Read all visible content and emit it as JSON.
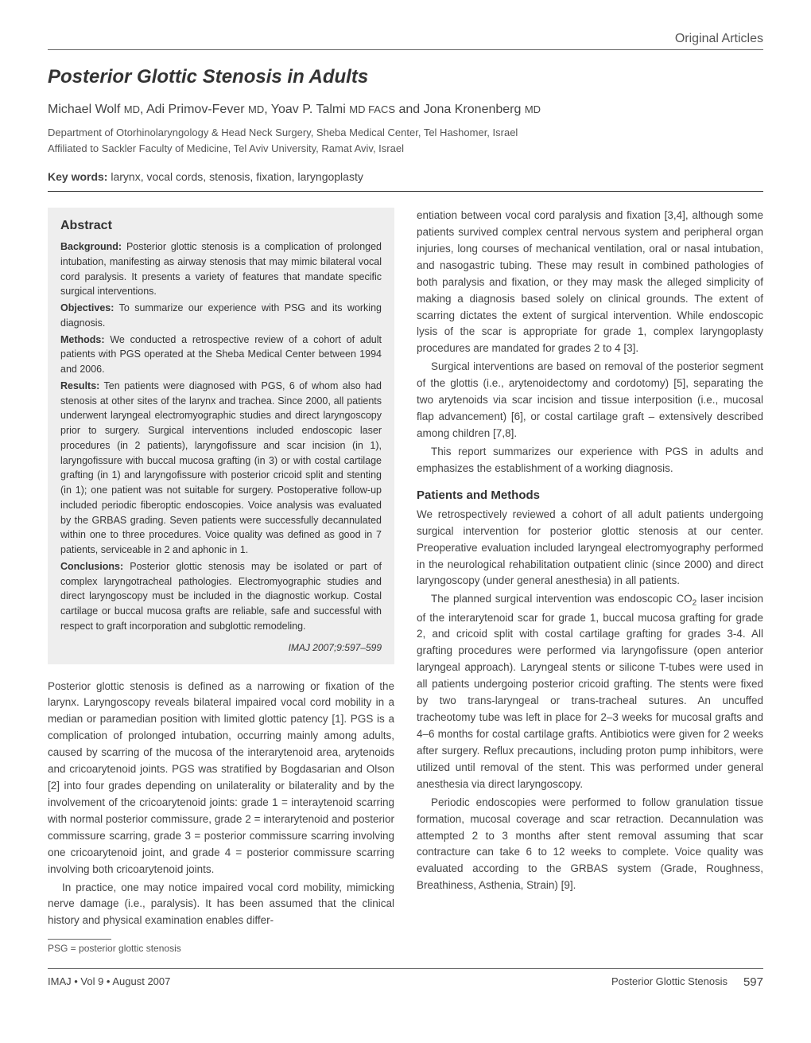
{
  "header": {
    "category": "Original Articles"
  },
  "title": "Posterior Glottic Stenosis in Adults",
  "authors_html": "Michael Wolf <span class=\"degree\">MD</span>, Adi Primov-Fever <span class=\"degree\">MD</span>, Yoav P. Talmi <span class=\"degree\">MD FACS</span> and Jona Kronenberg <span class=\"degree\">MD</span>",
  "affiliation_line1": "Department of Otorhinolaryngology & Head Neck Surgery, Sheba Medical Center, Tel Hashomer, Israel",
  "affiliation_line2": "Affiliated to Sackler Faculty of Medicine, Tel Aviv University, Ramat Aviv, Israel",
  "keywords": {
    "label": "Key words:",
    "text": "larynx, vocal cords, stenosis, fixation, laryngoplasty"
  },
  "abstract": {
    "title": "Abstract",
    "background": {
      "label": "Background:",
      "text": "Posterior glottic stenosis is a complication of prolonged intubation, manifesting as airway stenosis that may mimic bilateral vocal cord paralysis. It presents a variety of features that mandate specific surgical interventions."
    },
    "objectives": {
      "label": "Objectives:",
      "text": "To summarize our experience with PSG and its working diagnosis."
    },
    "methods": {
      "label": "Methods:",
      "text": "We conducted a retrospective review of a cohort of adult patients with PGS operated at the Sheba Medical Center between 1994 and 2006."
    },
    "results": {
      "label": "Results:",
      "text": "Ten patients were diagnosed with PGS, 6 of whom also had stenosis at other sites of the larynx and trachea. Since 2000, all patients underwent laryngeal electromyographic studies and direct laryngoscopy prior to surgery. Surgical interventions included endoscopic laser procedures (in 2 patients), laryngofissure and scar incision (in 1), laryngofissure with buccal mucosa grafting (in 3) or with costal cartilage grafting (in 1) and laryngofissure with posterior cricoid split and stenting (in 1); one patient was not suitable for surgery. Postoperative follow-up included periodic fiberoptic endoscopies. Voice analysis was evaluated by the GRBAS grading. Seven patients were successfully decannulated within one to three procedures. Voice quality was defined as good in 7 patients, serviceable in 2 and aphonic in 1."
    },
    "conclusions": {
      "label": "Conclusions:",
      "text": "Posterior glottic stenosis may be isolated or part of complex laryngotracheal pathologies. Electromyographic studies and direct laryngoscopy must be included in the diagnostic workup. Costal cartilage or buccal mucosa grafts are reliable, safe and successful with respect to graft incorporation and subglottic remodeling."
    },
    "citation": "IMAJ 2007;9:597–599"
  },
  "intro": {
    "p1": "Posterior glottic stenosis is defined as a narrowing or fixation of the larynx. Laryngoscopy reveals bilateral impaired vocal cord mobility in a median or paramedian position with limited glottic patency [1]. PGS is a complication of prolonged intubation, occurring mainly among adults, caused by scarring of the mucosa of the interarytenoid area, arytenoids and cricoarytenoid joints. PGS was stratified by Bogdasarian and Olson [2] into four grades depending on unilaterality or bilaterality and by the involvement of the cricoarytenoid joints: grade 1 = interaytenoid scarring with normal posterior commissure, grade 2 = interarytenoid and posterior commissure scarring, grade 3 = posterior commissure scarring involving one cricoarytenoid joint, and grade 4 = posterior commissure scarring involving both cricoarytenoid joints.",
    "p2": "In practice, one may notice impaired vocal cord mobility, mimicking nerve damage (i.e., paralysis). It has been assumed that the clinical history and physical examination enables differ-"
  },
  "col2": {
    "p1": "entiation between vocal cord paralysis and fixation [3,4], although some patients survived complex central nervous system and peripheral organ injuries, long courses of mechanical ventilation, oral or nasal intubation, and nasogastric tubing. These may result in combined pathologies of both paralysis and fixation, or they may mask the alleged simplicity of making a diagnosis based solely on clinical grounds. The extent of scarring dictates the extent of surgical intervention. While endoscopic lysis of the scar is appropriate for grade 1, complex laryngoplasty procedures are mandated for grades 2 to 4 [3].",
    "p2": "Surgical interventions are based on removal of the posterior segment of the glottis (i.e., arytenoidectomy and cordotomy) [5], separating the two arytenoids via scar incision and tissue interposition (i.e., mucosal flap advancement) [6], or costal cartilage graft – extensively described among children [7,8].",
    "p3": "This report summarizes our experience with PGS in adults and emphasizes the establishment of a working diagnosis."
  },
  "patients_methods": {
    "heading": "Patients and Methods",
    "p1": "We retrospectively reviewed a cohort of all adult patients undergoing surgical intervention for posterior glottic stenosis at our center. Preoperative evaluation included laryngeal electromyography performed in the neurological rehabilitation outpatient clinic (since 2000) and direct laryngoscopy (under general anesthesia) in all patients.",
    "p2_html": "The planned surgical intervention was endoscopic CO<span class=\"sub2\">2</span> laser incision of the interarytenoid scar for grade 1, buccal mucosa grafting for grade 2, and cricoid split with costal cartilage grafting for grades 3-4. All grafting procedures were performed via laryngofissure (open anterior laryngeal approach). Laryngeal stents or silicone T-tubes were used in all patients undergoing posterior cricoid grafting. The stents were fixed by two trans-laryngeal or trans-tracheal sutures. An uncuffed tracheotomy tube was left in place for 2–3 weeks for mucosal grafts and 4–6 months for costal cartilage grafts. Antibiotics were given for 2 weeks after surgery. Reflux precautions, including proton pump inhibitors, were utilized until removal of the stent. This was performed under general anesthesia via direct laryngoscopy.",
    "p3": "Periodic endoscopies were performed to follow granulation tissue formation, mucosal coverage and scar retraction. Decannulation was attempted 2 to 3 months after stent removal assuming that scar contracture can take 6 to 12 weeks to complete. Voice quality was evaluated according to the GRBAS system (Grade, Roughness, Breathiness, Asthenia, Strain) [9]."
  },
  "footnote": "PSG = posterior glottic stenosis",
  "footer": {
    "left": "IMAJ • Vol 9 • August 2007",
    "right_title": "Posterior Glottic Stenosis",
    "page": "597"
  }
}
